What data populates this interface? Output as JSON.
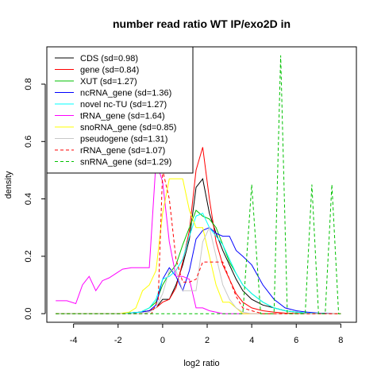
{
  "chart_data": {
    "type": "line",
    "title": "number read ratio WT IP/exo2D in",
    "xlabel": "log2 ratio",
    "ylabel": "density",
    "xlim": [
      -5.2,
      8.7
    ],
    "ylim": [
      -0.03,
      0.93
    ],
    "xticks": [
      -4,
      -2,
      0,
      2,
      4,
      6,
      8
    ],
    "yticks": [
      0.0,
      0.2,
      0.4,
      0.6,
      0.8
    ],
    "xtick_labels": [
      "-4",
      "-2",
      "0",
      "2",
      "4",
      "6",
      "8"
    ],
    "ytick_labels": [
      "0.0",
      "0.2",
      "0.4",
      "0.6",
      "0.8"
    ],
    "grid": false,
    "legend_position": "top-left",
    "series": [
      {
        "name": "CDS (sd=0.98)",
        "color": "#000000",
        "dash": "solid",
        "x": [
          -4.8,
          -2,
          -1,
          -0.6,
          -0.3,
          0,
          0.3,
          0.6,
          0.9,
          1.2,
          1.5,
          1.8,
          2.1,
          2.4,
          2.7,
          3.0,
          3.3,
          3.6,
          4.0,
          4.5,
          5.0,
          5.5,
          6.0,
          6.5,
          7.0,
          8.0
        ],
        "y": [
          0.0,
          0.0,
          0.005,
          0.01,
          0.02,
          0.05,
          0.05,
          0.1,
          0.17,
          0.26,
          0.44,
          0.47,
          0.35,
          0.28,
          0.22,
          0.17,
          0.12,
          0.08,
          0.05,
          0.03,
          0.02,
          0.01,
          0.005,
          0.002,
          0.001,
          0.0
        ]
      },
      {
        "name": "gene (sd=0.84)",
        "color": "#ff0000",
        "dash": "solid",
        "x": [
          -4.8,
          -2,
          -1,
          -0.6,
          -0.3,
          0,
          0.3,
          0.6,
          0.9,
          1.2,
          1.5,
          1.8,
          2.1,
          2.4,
          2.7,
          3.0,
          3.3,
          3.6,
          4.0,
          4.5,
          5.0,
          5.5,
          6.0,
          6.5,
          7.0,
          8.0
        ],
        "y": [
          0.0,
          0.0,
          0.005,
          0.01,
          0.02,
          0.04,
          0.05,
          0.09,
          0.18,
          0.29,
          0.5,
          0.58,
          0.4,
          0.25,
          0.17,
          0.12,
          0.07,
          0.04,
          0.02,
          0.01,
          0.005,
          0.002,
          0.001,
          0.0,
          0.0,
          0.0
        ]
      },
      {
        "name": "XUT (sd=1.27)",
        "color": "#00c000",
        "dash": "solid",
        "x": [
          -4.8,
          -2,
          -1,
          -0.6,
          -0.3,
          0,
          0.3,
          0.6,
          0.9,
          1.2,
          1.5,
          1.8,
          2.1,
          2.4,
          2.7,
          3.0,
          3.3,
          3.6,
          4.0,
          4.5,
          5.0,
          5.5,
          6.0,
          6.5,
          7.0,
          8.0
        ],
        "y": [
          0.0,
          0.0,
          0.005,
          0.02,
          0.04,
          0.1,
          0.14,
          0.17,
          0.24,
          0.3,
          0.36,
          0.34,
          0.33,
          0.3,
          0.24,
          0.18,
          0.14,
          0.1,
          0.07,
          0.04,
          0.02,
          0.01,
          0.005,
          0.002,
          0.001,
          0.0
        ]
      },
      {
        "name": "ncRNA_gene (sd=1.36)",
        "color": "#0000ff",
        "dash": "solid",
        "x": [
          -4.8,
          -2,
          -1,
          -0.6,
          -0.3,
          0,
          0.3,
          0.6,
          0.9,
          1.2,
          1.5,
          1.8,
          2.1,
          2.4,
          2.7,
          3.0,
          3.3,
          3.6,
          4.0,
          4.5,
          5.0,
          5.5,
          6.0,
          6.5,
          7.0,
          8.0
        ],
        "y": [
          0.0,
          0.0,
          0.005,
          0.01,
          0.03,
          0.12,
          0.16,
          0.13,
          0.08,
          0.15,
          0.26,
          0.29,
          0.3,
          0.28,
          0.27,
          0.27,
          0.22,
          0.2,
          0.17,
          0.1,
          0.05,
          0.02,
          0.01,
          0.005,
          0.002,
          0.0
        ]
      },
      {
        "name": "novel nc-TU (sd=1.27)",
        "color": "#00ffff",
        "dash": "solid",
        "x": [
          -4.8,
          -2,
          -1,
          -0.6,
          -0.3,
          0,
          0.3,
          0.6,
          0.9,
          1.2,
          1.5,
          1.8,
          2.1,
          2.4,
          2.7,
          3.0,
          3.3,
          3.6,
          4.0,
          4.5,
          5.0,
          5.5,
          6.0,
          6.5,
          7.0,
          8.0
        ],
        "y": [
          0.0,
          0.0,
          0.005,
          0.02,
          0.05,
          0.12,
          0.13,
          0.15,
          0.19,
          0.27,
          0.34,
          0.35,
          0.3,
          0.27,
          0.24,
          0.19,
          0.14,
          0.1,
          0.07,
          0.04,
          0.02,
          0.01,
          0.005,
          0.002,
          0.001,
          0.0
        ]
      },
      {
        "name": "tRNA_gene (sd=1.64)",
        "color": "#ff00ff",
        "dash": "solid",
        "x": [
          -4.8,
          -4.3,
          -3.9,
          -3.6,
          -3.3,
          -3.0,
          -2.7,
          -2.4,
          -2.1,
          -1.8,
          -1.4,
          -1.0,
          -0.6,
          -0.3,
          0.0,
          0.3,
          0.6,
          0.9,
          1.2,
          1.5,
          1.8,
          2.1,
          2.4,
          2.7,
          3.0,
          3.5,
          4.0,
          8.0
        ],
        "y": [
          0.045,
          0.045,
          0.035,
          0.1,
          0.13,
          0.08,
          0.115,
          0.125,
          0.14,
          0.155,
          0.16,
          0.16,
          0.16,
          0.53,
          0.46,
          0.25,
          0.13,
          0.13,
          0.12,
          0.02,
          0.02,
          0.01,
          0.005,
          0.0,
          0.0,
          0.0,
          0.0,
          0.0
        ]
      },
      {
        "name": "snoRNA_gene (sd=0.85)",
        "color": "#ffff00",
        "dash": "solid",
        "x": [
          -4.8,
          -2,
          -1.5,
          -1.2,
          -0.9,
          -0.6,
          -0.3,
          0.0,
          0.3,
          0.6,
          0.9,
          1.2,
          1.5,
          1.8,
          2.1,
          2.4,
          2.7,
          3.0,
          3.3,
          3.6,
          4.0,
          8.0
        ],
        "y": [
          0.0,
          0.0,
          0.005,
          0.02,
          0.08,
          0.1,
          0.15,
          0.35,
          0.47,
          0.47,
          0.47,
          0.36,
          0.3,
          0.3,
          0.2,
          0.1,
          0.04,
          0.04,
          0.02,
          0.0,
          0.0,
          0.0
        ]
      },
      {
        "name": "pseudogene (sd=1.31)",
        "color": "#c8c8c8",
        "dash": "solid",
        "x": [
          -4.8,
          -2,
          -1,
          -0.6,
          -0.3,
          0.0,
          0.3,
          0.6,
          0.9,
          1.2,
          1.5,
          1.8,
          2.1,
          2.4,
          2.7,
          3.0,
          3.3,
          3.6,
          4.0,
          8.0
        ],
        "y": [
          0.0,
          0.0,
          0.0,
          0.005,
          0.02,
          0.07,
          0.15,
          0.15,
          0.08,
          0.08,
          0.08,
          0.25,
          0.3,
          0.2,
          0.1,
          0.05,
          0.02,
          0.005,
          0.0,
          0.0
        ]
      },
      {
        "name": "rRNA_gene (sd=1.07)",
        "color": "#ff0000",
        "dash": "dashed",
        "x": [
          -4.8,
          -1,
          -0.5,
          -0.2,
          0.0,
          0.3,
          0.6,
          0.9,
          1.2,
          1.5,
          1.8,
          2.1,
          2.4,
          2.7,
          3.0,
          3.3,
          3.6,
          4.0,
          4.5,
          8.0
        ],
        "y": [
          0.0,
          0.0,
          0.0,
          0.05,
          0.5,
          0.4,
          0.19,
          0.11,
          0.11,
          0.12,
          0.18,
          0.18,
          0.18,
          0.18,
          0.12,
          0.06,
          0.02,
          0.01,
          0.0,
          0.0
        ]
      },
      {
        "name": "snRNA_gene (sd=1.29)",
        "color": "#00c000",
        "dash": "dashed",
        "x": [
          -4.8,
          3.6,
          4.0,
          4.4,
          5.0,
          5.3,
          5.6,
          6.4,
          6.7,
          7.0,
          7.3,
          7.6,
          7.9,
          8.0
        ],
        "y": [
          0.0,
          0.0,
          0.45,
          0.0,
          0.0,
          0.9,
          0.0,
          0.0,
          0.45,
          0.0,
          0.0,
          0.45,
          0.0,
          0.0
        ]
      }
    ]
  }
}
